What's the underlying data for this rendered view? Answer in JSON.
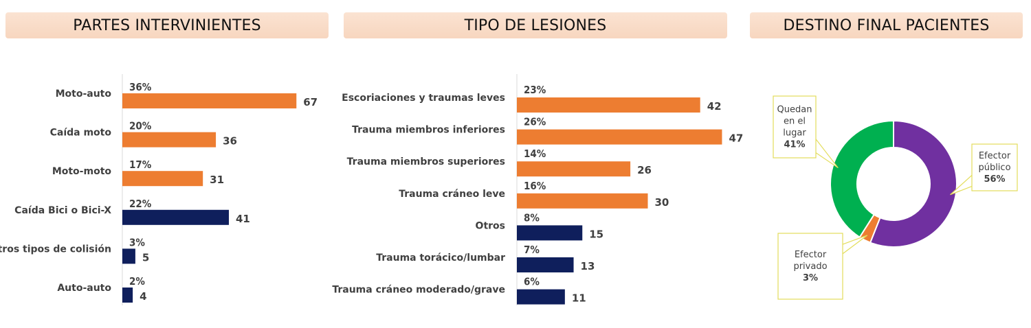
{
  "titles": {
    "left": "PARTES INTERVINIENTES",
    "middle": "TIPO DE LESIONES",
    "right": "DESTINO FINAL PACIENTES"
  },
  "colors": {
    "orange": "#ed7d31",
    "navy": "#0f1f5c",
    "purple": "#7030a0",
    "green": "#00b050",
    "callout_border": "#e3dd5a"
  },
  "chart_data": [
    {
      "type": "bar",
      "orientation": "horizontal",
      "title": "PARTES INTERVINIENTES",
      "categories": [
        "Moto-auto",
        "Caída moto",
        "Moto-moto",
        "Caída Bici o  Bici-X",
        "Otros tipos de colisión",
        "Auto-auto"
      ],
      "values": [
        67,
        36,
        31,
        41,
        5,
        4
      ],
      "percent_labels": [
        "36%",
        "20%",
        "17%",
        "22%",
        "3%",
        "2%"
      ],
      "colors": [
        "orange",
        "orange",
        "orange",
        "navy",
        "navy",
        "navy"
      ],
      "xlim": [
        0,
        67
      ]
    },
    {
      "type": "bar",
      "orientation": "horizontal",
      "title": "TIPO DE LESIONES",
      "categories": [
        "Escoriaciones y traumas leves",
        "Trauma miembros inferiores",
        "Trauma miembros superiores",
        "Trauma cráneo leve",
        "Otros",
        "Trauma torácico/lumbar",
        "Trauma cráneo moderado/grave"
      ],
      "values": [
        42,
        47,
        26,
        30,
        15,
        13,
        11
      ],
      "percent_labels": [
        "23%",
        "26%",
        "14%",
        "16%",
        "8%",
        "7%",
        "6%"
      ],
      "colors": [
        "orange",
        "orange",
        "orange",
        "orange",
        "navy",
        "navy",
        "navy"
      ],
      "xlim": [
        0,
        47
      ]
    },
    {
      "type": "pie",
      "variant": "donut",
      "title": "DESTINO FINAL PACIENTES",
      "slices": [
        {
          "label_lines": [
            "Efector",
            "público"
          ],
          "pct_label": "56%",
          "value": 56,
          "color": "purple"
        },
        {
          "label_lines": [
            "Efector",
            "privado"
          ],
          "pct_label": "3%",
          "value": 3,
          "color": "orange"
        },
        {
          "label_lines": [
            "Quedan",
            "en el",
            "lugar"
          ],
          "pct_label": "41%",
          "value": 41,
          "color": "green"
        }
      ]
    }
  ]
}
